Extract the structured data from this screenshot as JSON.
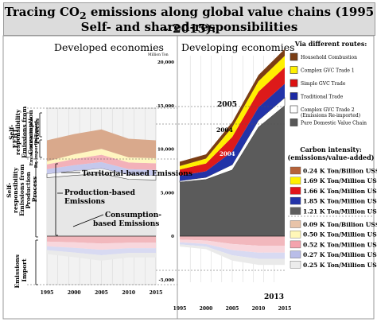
{
  "title": {
    "line1_pre": "Tracing CO",
    "line1_sub": "2",
    "line1_post": " emissions along global value chains (1995 – 2015):",
    "line2": "Self- and shared-responsibilities"
  },
  "colors": {
    "household": "#7a3d14",
    "complex_gvc_1": "#fff000",
    "simple_gvc": "#dd1111",
    "traditional": "#1d2aa5",
    "complex_gvc_2": "#ffffff",
    "pure_domestic": "#585858"
  },
  "chart_data": [
    {
      "type": "area",
      "title": "Developed economies",
      "x": [
        1995,
        2000,
        2005,
        2010,
        2015
      ],
      "x_ticks": [
        "1995",
        "2000",
        "2005",
        "2010",
        "2015"
      ],
      "ylim": [
        -5000,
        22000
      ],
      "grid": true,
      "region_labels": [
        "Self-responsibility Emissions from Consumption Process",
        "EEBT",
        "Emissions Export",
        "Emissions Re-imported",
        "Self-responsibility Emissions from Production Process",
        "Emissions Import"
      ],
      "annotations": [
        "Territorial-based Emissions",
        "Production-based Emissions",
        "Consumption-based Emissions"
      ],
      "series": [
        {
          "name": "Pure Domestic Value Chain",
          "values": [
            7500,
            7800,
            8000,
            7300,
            7200
          ]
        },
        {
          "name": "Complex GVC Trade 2 (Emissions Re-imported)",
          "values": [
            500,
            600,
            700,
            600,
            600
          ]
        },
        {
          "name": "Traditional Trade",
          "values": [
            600,
            700,
            800,
            700,
            700
          ]
        },
        {
          "name": "Simple GVC Trade",
          "values": [
            600,
            800,
            950,
            850,
            850
          ]
        },
        {
          "name": "Complex GVC Trade 1",
          "values": [
            400,
            600,
            750,
            650,
            650
          ]
        },
        {
          "name": "Household Combustion",
          "values": [
            2700,
            2600,
            2500,
            2400,
            2300
          ]
        }
      ],
      "import_series": [
        {
          "name": "Import layer 1",
          "values": [
            -700,
            -800,
            -950,
            -850,
            -850
          ]
        },
        {
          "name": "Import layer 2",
          "values": [
            -600,
            -700,
            -800,
            -700,
            -700
          ]
        },
        {
          "name": "Import layer 3",
          "values": [
            -500,
            -600,
            -700,
            -600,
            -600
          ]
        },
        {
          "name": "Import layer 4",
          "values": [
            -500,
            -600,
            -700,
            -600,
            -600
          ]
        }
      ]
    },
    {
      "type": "area",
      "title": "Developing economies",
      "ylabel": "Million Ton",
      "x": [
        1995,
        2000,
        2005,
        2010,
        2015
      ],
      "x_ticks": [
        "1995",
        "2000",
        "2005",
        "2010",
        "2015"
      ],
      "y_ticks": [
        "-5,000",
        "0",
        "5,000",
        "10,000",
        "15,000",
        "20,000"
      ],
      "ylim": [
        -5000,
        22000
      ],
      "grid": true,
      "annotations": [
        "2005",
        "2004",
        "2004",
        "2013"
      ],
      "series": [
        {
          "name": "Pure Domestic Value Chain",
          "values": [
            6200,
            6500,
            7600,
            12500,
            15000
          ]
        },
        {
          "name": "Complex GVC Trade 2 (Emissions Re-imported)",
          "values": [
            150,
            250,
            600,
            800,
            900
          ]
        },
        {
          "name": "Traditional Trade",
          "values": [
            600,
            700,
            1500,
            1500,
            1600
          ]
        },
        {
          "name": "Simple GVC Trade",
          "values": [
            700,
            900,
            1700,
            1800,
            1900
          ]
        },
        {
          "name": "Complex GVC Trade 1",
          "values": [
            400,
            550,
            1100,
            1200,
            1300
          ]
        },
        {
          "name": "Household Combustion",
          "values": [
            500,
            500,
            600,
            700,
            800
          ]
        }
      ],
      "import_series": [
        {
          "name": "Import layer 1",
          "values": [
            -400,
            -500,
            -900,
            -1100,
            -1100
          ]
        },
        {
          "name": "Import layer 2",
          "values": [
            -300,
            -400,
            -700,
            -800,
            -800
          ]
        },
        {
          "name": "Import layer 3",
          "values": [
            -250,
            -300,
            -600,
            -700,
            -700
          ]
        },
        {
          "name": "Import layer 4",
          "values": [
            -250,
            -300,
            -600,
            -700,
            -700
          ]
        }
      ]
    }
  ],
  "legend_routes": {
    "title": "Via different routes:",
    "items": [
      {
        "label": "Household Combustion",
        "color": "#7a3d14"
      },
      {
        "label": "Complex GVC Trade 1",
        "color": "#fff000"
      },
      {
        "label": "Simple GVC Trade",
        "color": "#dd1111"
      },
      {
        "label": "Traditional Trade",
        "color": "#1d2aa5"
      },
      {
        "label": "Complex GVC Trade 2",
        "label2": "(Emissions Re-imported)",
        "color": "#ffffff"
      },
      {
        "label": "Pure Domestic Value Chain",
        "color": "#585858"
      }
    ]
  },
  "legend_intensity": {
    "title1": "Carbon intensity:",
    "title2": "(emissions/value-added)",
    "items": [
      {
        "label": "0.24 K Ton/Billion US$",
        "color": "#b5623a"
      },
      {
        "label": "1.69 K Ton/Million US$",
        "color": "#fff000"
      },
      {
        "label": "1.66 K Ton/Million US$",
        "color": "#e0141a"
      },
      {
        "label": "1.85 K Ton/Million US$",
        "color": "#2233a8"
      },
      {
        "label": "1.21 K Ton/Million US$",
        "color": "#5e5e5e"
      },
      {
        "label": "0.09 K Ton/Billion US$",
        "color": "#e8c3a8"
      },
      {
        "label": "0.50 K Ton/Million US$",
        "color": "#fff7b8"
      },
      {
        "label": "0.52 K Ton/Million US$",
        "color": "#f4a3ad"
      },
      {
        "label": "0.27 K Ton/Million US$",
        "color": "#b9bde8"
      },
      {
        "label": "0.25 K Ton/Million US$",
        "color": "#ececec"
      }
    ]
  }
}
